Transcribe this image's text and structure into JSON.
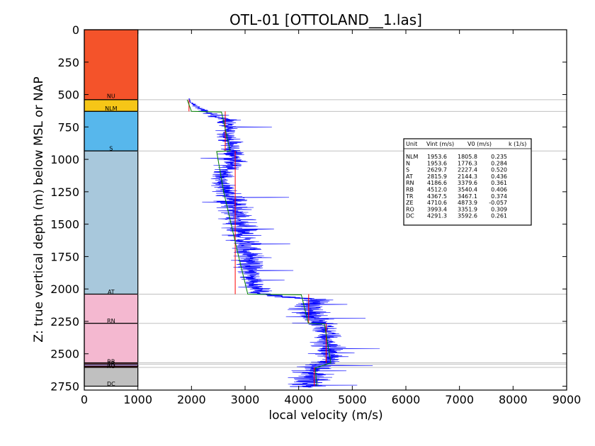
{
  "chart_data": {
    "type": "line",
    "title": "OTL-01 [OTTOLAND__1.las]",
    "xlabel": "local velocity (m/s)",
    "ylabel": "Z: true vertical depth (m) below MSL or NAP",
    "xlim": [
      0,
      9000
    ],
    "ylim": [
      2780,
      0
    ],
    "y_inverted": true,
    "x_ticks": [
      0,
      1000,
      2000,
      3000,
      4000,
      5000,
      6000,
      7000,
      8000,
      9000
    ],
    "y_ticks": [
      0,
      250,
      500,
      750,
      1000,
      1250,
      1500,
      1750,
      2000,
      2250,
      2500,
      2750
    ],
    "grid": false,
    "units": [
      {
        "name": "NU",
        "top": 0,
        "base": 540,
        "color": "#f4532a",
        "label": "NU"
      },
      {
        "name": "NLM",
        "top": 540,
        "base": 630,
        "color": "#f6c617",
        "label": "NLM"
      },
      {
        "name": "S",
        "top": 630,
        "base": 935,
        "color": "#57b7ec",
        "label": "S"
      },
      {
        "name": "AT",
        "top": 935,
        "base": 2040,
        "color": "#a8c8dc",
        "label": "AT"
      },
      {
        "name": "RN",
        "top": 2040,
        "base": 2265,
        "color": "#f4b8d0",
        "label": "RN"
      },
      {
        "name": "RB",
        "top": 2265,
        "base": 2570,
        "color": "#f4b8d0",
        "label": "RB"
      },
      {
        "name": "TR",
        "top": 2570,
        "base": 2580,
        "color": "#e27e92",
        "label": "TR"
      },
      {
        "name": "ZE",
        "top": 2580,
        "base": 2595,
        "color": "#c8a0e8",
        "label": "ZE"
      },
      {
        "name": "RO",
        "top": 2595,
        "base": 2605,
        "color": "#8b2323",
        "label": "RO"
      },
      {
        "name": "DC",
        "top": 2605,
        "base": 2750,
        "color": "#c0c0c0",
        "label": "DC"
      }
    ],
    "horizon_labels": [
      {
        "text": "NU",
        "depth": 510
      },
      {
        "text": "NLM",
        "depth": 605
      },
      {
        "text": "S",
        "depth": 915
      },
      {
        "text": "AT",
        "depth": 2020
      },
      {
        "text": "RN",
        "depth": 2245
      },
      {
        "text": "RB",
        "depth": 2560
      },
      {
        "text": "TR",
        "depth": 2575
      },
      {
        "text": "RO",
        "depth": 2595
      },
      {
        "text": "DC",
        "depth": 2730
      }
    ],
    "horizon_lines": [
      540,
      630,
      935,
      2040,
      2265,
      2570,
      2580,
      2605
    ],
    "interval_velocity": [
      {
        "unit": "NLM",
        "v": 1953.6,
        "top": 540,
        "base": 630
      },
      {
        "unit": "S",
        "v": 2629.7,
        "top": 630,
        "base": 935
      },
      {
        "unit": "AT",
        "v": 2815.9,
        "top": 935,
        "base": 2040
      },
      {
        "unit": "RN",
        "v": 4186.6,
        "top": 2040,
        "base": 2265
      },
      {
        "unit": "RB",
        "v": 4512.0,
        "top": 2265,
        "base": 2570
      },
      {
        "unit": "DC",
        "v": 4291.3,
        "top": 2605,
        "base": 2750
      }
    ],
    "trend_fit": [
      {
        "z": 540,
        "v": 1920
      },
      {
        "z": 630,
        "v": 2000
      },
      {
        "z": 635,
        "v": 2560
      },
      {
        "z": 935,
        "v": 2720
      },
      {
        "z": 940,
        "v": 2470
      },
      {
        "z": 1250,
        "v": 2600
      },
      {
        "z": 1500,
        "v": 2740
      },
      {
        "z": 1750,
        "v": 2880
      },
      {
        "z": 2040,
        "v": 3050
      },
      {
        "z": 2045,
        "v": 4050
      },
      {
        "z": 2265,
        "v": 4180
      },
      {
        "z": 2270,
        "v": 4480
      },
      {
        "z": 2570,
        "v": 4600
      },
      {
        "z": 2610,
        "v": 4310
      },
      {
        "z": 2750,
        "v": 4340
      }
    ],
    "velocity_log": {
      "name": "local velocity",
      "color": "#0000ff",
      "depth_start": 530,
      "depth_end": 2760,
      "envelope": [
        {
          "z": 530,
          "v": 1950,
          "spread": 40
        },
        {
          "z": 560,
          "v": 1980,
          "spread": 80
        },
        {
          "z": 620,
          "v": 2200,
          "spread": 250
        },
        {
          "z": 700,
          "v": 2650,
          "spread": 450
        },
        {
          "z": 850,
          "v": 2700,
          "spread": 500
        },
        {
          "z": 1000,
          "v": 2800,
          "spread": 600
        },
        {
          "z": 1150,
          "v": 2550,
          "spread": 450
        },
        {
          "z": 1300,
          "v": 2750,
          "spread": 700
        },
        {
          "z": 1500,
          "v": 2850,
          "spread": 900
        },
        {
          "z": 1700,
          "v": 3050,
          "spread": 700
        },
        {
          "z": 1900,
          "v": 3100,
          "spread": 600
        },
        {
          "z": 2040,
          "v": 3300,
          "spread": 500
        },
        {
          "z": 2080,
          "v": 4300,
          "spread": 800
        },
        {
          "z": 2200,
          "v": 4200,
          "spread": 900
        },
        {
          "z": 2300,
          "v": 4500,
          "spread": 700
        },
        {
          "z": 2450,
          "v": 4550,
          "spread": 700
        },
        {
          "z": 2560,
          "v": 4600,
          "spread": 800
        },
        {
          "z": 2620,
          "v": 4250,
          "spread": 900
        },
        {
          "z": 2700,
          "v": 4200,
          "spread": 900
        },
        {
          "z": 2760,
          "v": 4150,
          "spread": 700
        }
      ]
    },
    "table": {
      "header": [
        "Unit",
        "Vint (m/s)",
        "V0 (m/s)",
        "k (1/s)"
      ],
      "rows": [
        [
          "NLM",
          "1953.6",
          "1805.8",
          "0.235"
        ],
        [
          "N",
          "1953.6",
          "1776.3",
          "0.284"
        ],
        [
          "S",
          "2629.7",
          "2227.4",
          "0.520"
        ],
        [
          "AT",
          "2815.9",
          "2144.3",
          "0.436"
        ],
        [
          "RN",
          "4186.6",
          "3379.6",
          "0.361"
        ],
        [
          "RB",
          "4512.0",
          "3540.4",
          "0.406"
        ],
        [
          "TR",
          "4367.5",
          "3467.1",
          "0.374"
        ],
        [
          "ZE",
          "4710.6",
          "4873.9",
          "-0.057"
        ],
        [
          "RO",
          "3993.4",
          "3351.9",
          "0.309"
        ],
        [
          "DC",
          "4291.3",
          "3592.6",
          "0.261"
        ]
      ]
    },
    "colors": {
      "log": "#0000ff",
      "interval": "#ff0000",
      "trend": "#008000",
      "horizon": "#c0c0c0",
      "axis": "#000000"
    }
  }
}
